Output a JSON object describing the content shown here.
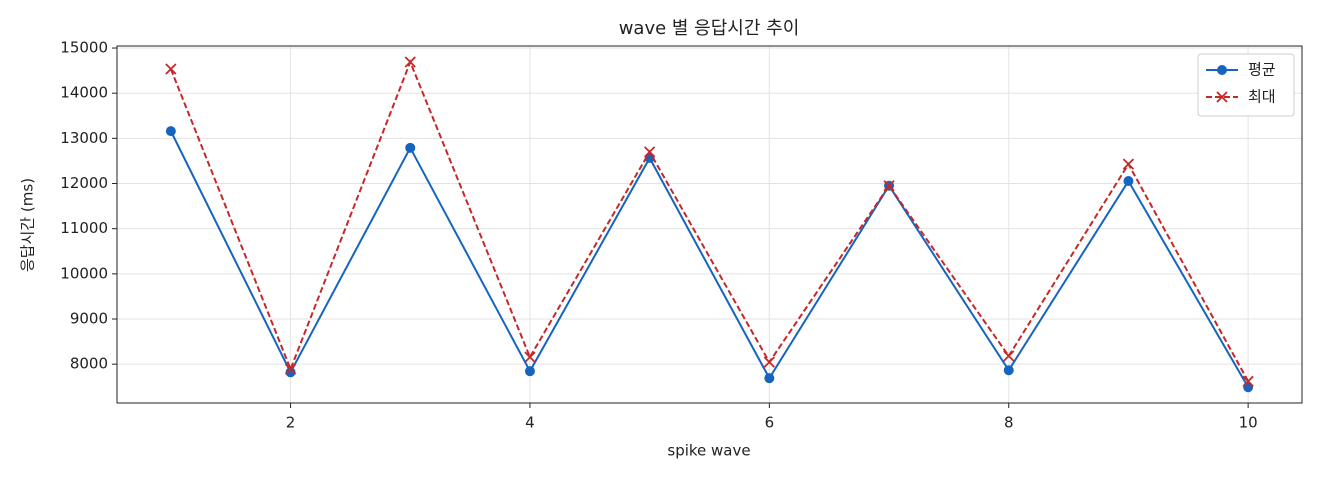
{
  "chart_data": {
    "type": "line",
    "title": "wave 별 응답시간 추이",
    "x_label": "spike wave",
    "y_label": "응답시간 (ms)",
    "x": [
      1,
      2,
      3,
      4,
      5,
      6,
      7,
      8,
      9,
      10
    ],
    "series": [
      {
        "name": "평균",
        "color": "#1565c0",
        "marker": "o",
        "dashed": false,
        "values": [
          13160,
          7820,
          12790,
          7845,
          12565,
          7690,
          11950,
          7865,
          12055,
          7490
        ]
      },
      {
        "name": "최대",
        "color": "#c62828",
        "marker": "x",
        "dashed": true,
        "values": [
          14535,
          7890,
          14690,
          8155,
          12700,
          8045,
          11950,
          8180,
          12430,
          7620
        ]
      }
    ],
    "xlim": [
      0.55,
      10.45
    ],
    "xticks": [
      2,
      4,
      6,
      8,
      10
    ],
    "ylim": [
      7140,
      15045
    ],
    "yticks": [
      8000,
      9000,
      10000,
      11000,
      12000,
      13000,
      14000,
      15000
    ],
    "grid": true,
    "legend": "upper right"
  }
}
